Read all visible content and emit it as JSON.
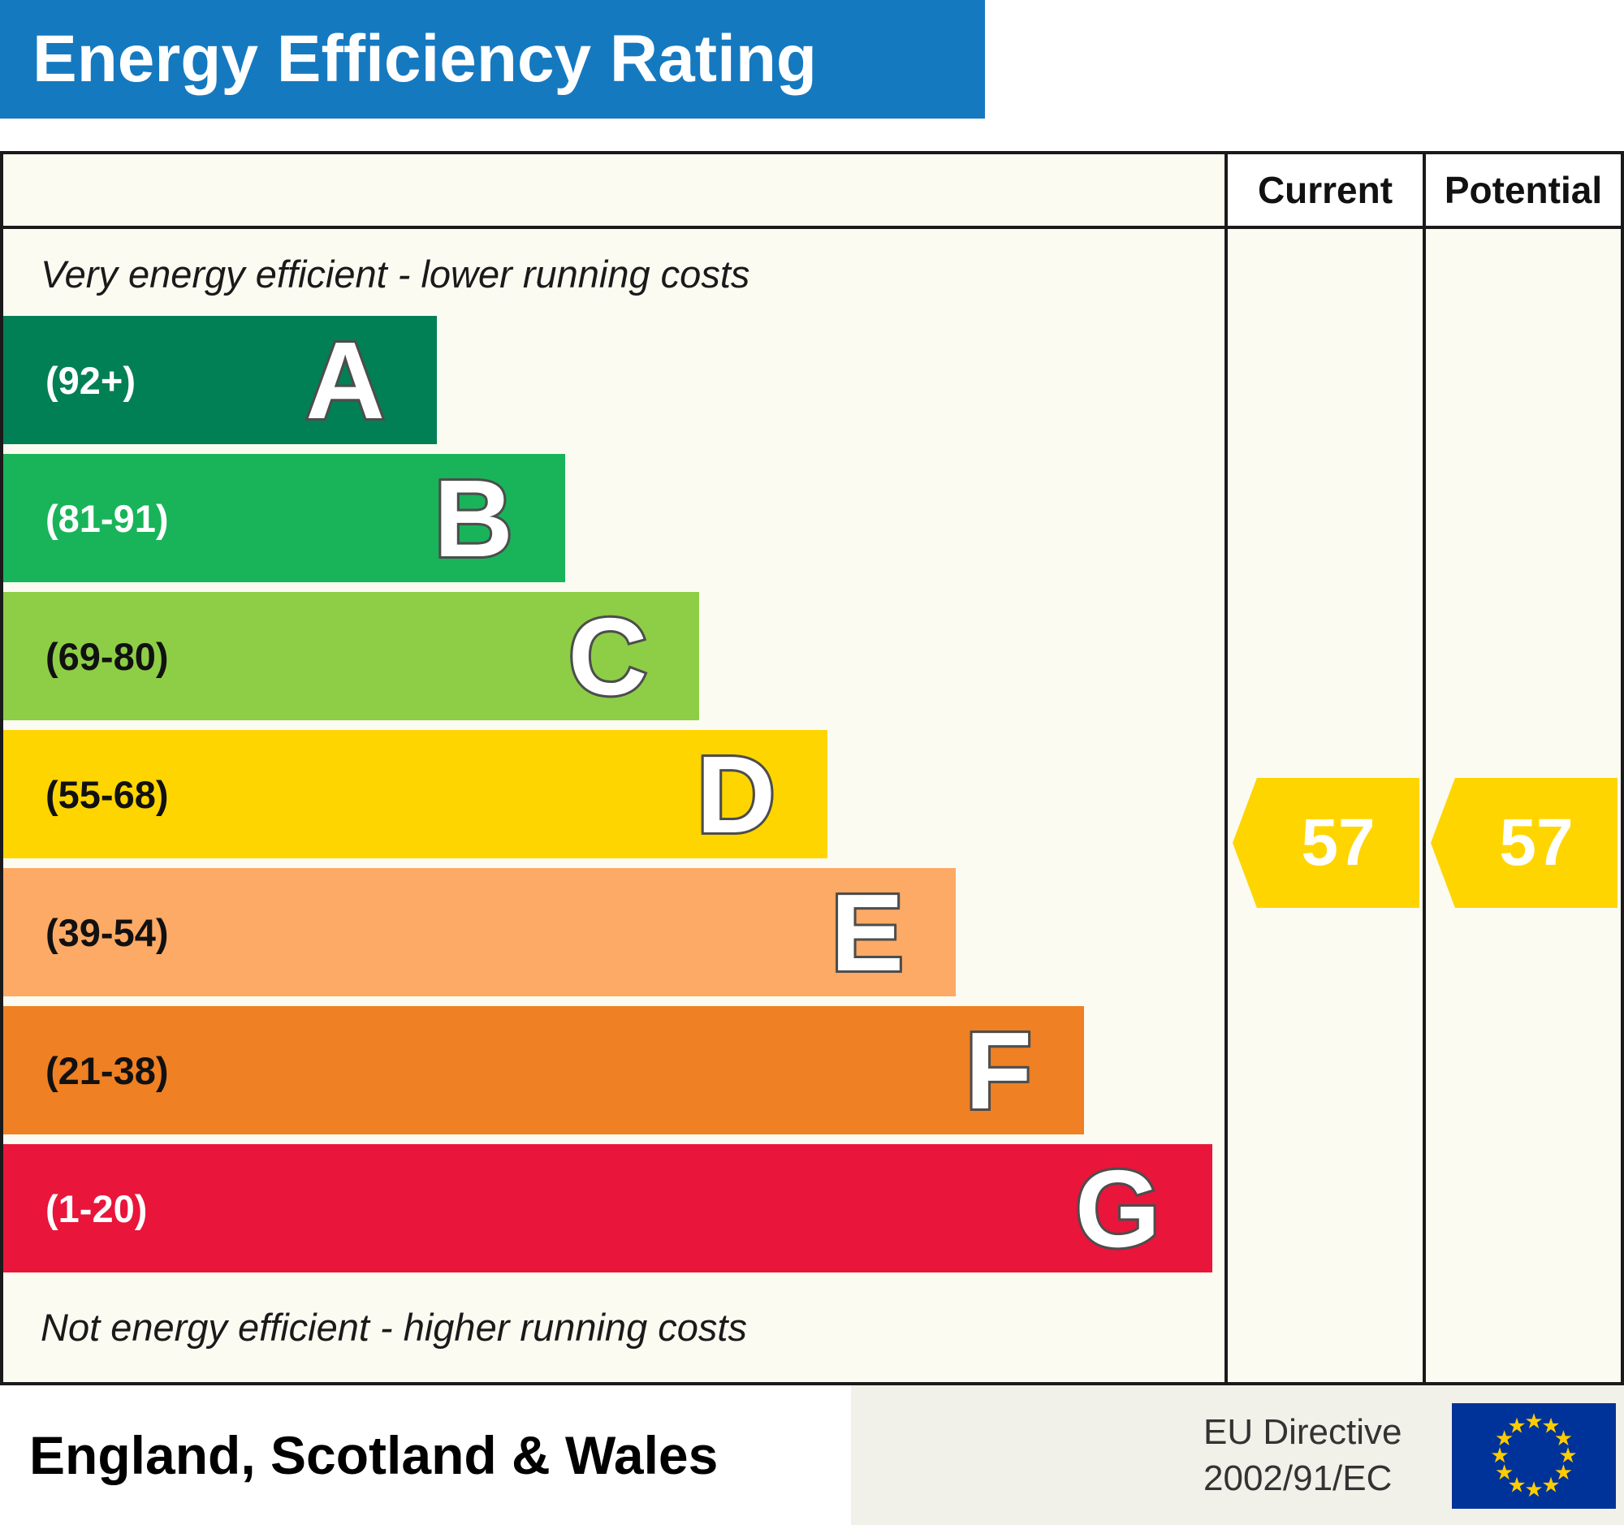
{
  "title": "Energy Efficiency Rating",
  "header": {
    "current_label": "Current",
    "potential_label": "Potential"
  },
  "notes": {
    "top": "Very energy efficient - lower running costs",
    "bottom": "Not energy efficient - higher running costs"
  },
  "bands": [
    {
      "letter": "A",
      "range": "(92+)",
      "color": "#008054",
      "text_color": "#ffffff",
      "width_pct": 35.5
    },
    {
      "letter": "B",
      "range": "(81-91)",
      "color": "#19b459",
      "text_color": "#ffffff",
      "width_pct": 46
    },
    {
      "letter": "C",
      "range": "(69-80)",
      "color": "#8dce46",
      "text_color": "#111111",
      "width_pct": 57
    },
    {
      "letter": "D",
      "range": "(55-68)",
      "color": "#ffd500",
      "text_color": "#111111",
      "width_pct": 67.5
    },
    {
      "letter": "E",
      "range": "(39-54)",
      "color": "#fcaa65",
      "text_color": "#111111",
      "width_pct": 78
    },
    {
      "letter": "F",
      "range": "(21-38)",
      "color": "#ef8023",
      "text_color": "#111111",
      "width_pct": 88.5
    },
    {
      "letter": "G",
      "range": "(1-20)",
      "color": "#e9153b",
      "text_color": "#ffffff",
      "width_pct": 99
    }
  ],
  "ratings": {
    "current": {
      "value": "57",
      "band": "D",
      "color": "#ffd500"
    },
    "potential": {
      "value": "57",
      "band": "D",
      "color": "#ffd500"
    }
  },
  "footer": {
    "region": "England, Scotland & Wales",
    "directive_line1": "EU Directive",
    "directive_line2": "2002/91/EC"
  },
  "colors": {
    "title_bar": "#1579c0",
    "border": "#1a1a1a",
    "eu_flag_blue": "#003399",
    "eu_star_yellow": "#ffcc00"
  },
  "chart_data": {
    "type": "bar",
    "title": "Energy Efficiency Rating",
    "categories": [
      "A (92+)",
      "B (81-91)",
      "C (69-80)",
      "D (55-68)",
      "E (39-54)",
      "F (21-38)",
      "G (1-20)"
    ],
    "values": [
      35.5,
      46,
      57,
      67.5,
      78,
      88.5,
      99
    ],
    "value_unit": "decorative band length, percent of scale width",
    "band_colors": [
      "#008054",
      "#19b459",
      "#8dce46",
      "#ffd500",
      "#fcaa65",
      "#ef8023",
      "#e9153b"
    ],
    "current_rating": 57,
    "current_band": "D",
    "potential_rating": 57,
    "potential_band": "D",
    "top_annotation": "Very energy efficient - lower running costs",
    "bottom_annotation": "Not energy efficient - higher running costs",
    "columns": [
      "Current",
      "Potential"
    ],
    "region": "England, Scotland & Wales",
    "directive": "EU Directive 2002/91/EC"
  }
}
